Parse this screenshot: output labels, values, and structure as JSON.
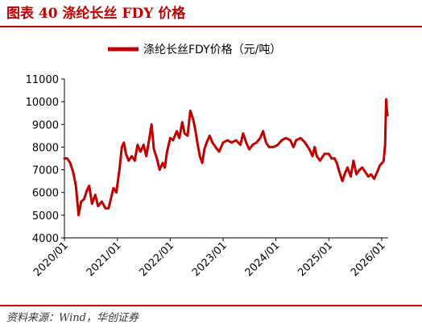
{
  "figure": {
    "title": "图表 40  涤纶长丝 FDY 价格",
    "source": "资料来源：Wind，华创证券"
  },
  "colors": {
    "accent": "#c00000",
    "series": "#c00000"
  },
  "chart_data": {
    "type": "line",
    "legend": "top-center",
    "grid": false,
    "series": [
      {
        "name": "涤纶长丝FDY价格（元/吨）",
        "points": [
          [
            "2020-01-01",
            7500
          ],
          [
            "2020-01-20",
            7500
          ],
          [
            "2020-02-10",
            7300
          ],
          [
            "2020-03-01",
            6900
          ],
          [
            "2020-03-20",
            6300
          ],
          [
            "2020-04-08",
            5000
          ],
          [
            "2020-04-25",
            5600
          ],
          [
            "2020-05-15",
            5700
          ],
          [
            "2020-06-05",
            6100
          ],
          [
            "2020-06-20",
            6300
          ],
          [
            "2020-07-10",
            5500
          ],
          [
            "2020-08-01",
            5900
          ],
          [
            "2020-08-20",
            5400
          ],
          [
            "2020-09-15",
            5600
          ],
          [
            "2020-10-10",
            5300
          ],
          [
            "2020-11-01",
            5300
          ],
          [
            "2020-11-20",
            5800
          ],
          [
            "2020-12-05",
            6200
          ],
          [
            "2020-12-25",
            6000
          ],
          [
            "2021-01-15",
            7000
          ],
          [
            "2021-02-01",
            8000
          ],
          [
            "2021-02-15",
            8200
          ],
          [
            "2021-03-01",
            7700
          ],
          [
            "2021-03-20",
            7400
          ],
          [
            "2021-04-10",
            7600
          ],
          [
            "2021-05-01",
            7400
          ],
          [
            "2021-05-20",
            8100
          ],
          [
            "2021-06-10",
            7800
          ],
          [
            "2021-07-01",
            8100
          ],
          [
            "2021-07-20",
            7600
          ],
          [
            "2021-08-10",
            8400
          ],
          [
            "2021-08-25",
            9000
          ],
          [
            "2021-09-10",
            7900
          ],
          [
            "2021-10-01",
            7500
          ],
          [
            "2021-10-20",
            7000
          ],
          [
            "2021-11-10",
            7300
          ],
          [
            "2021-11-25",
            7100
          ],
          [
            "2021-12-10",
            7800
          ],
          [
            "2022-01-01",
            8400
          ],
          [
            "2022-01-20",
            8300
          ],
          [
            "2022-02-15",
            8700
          ],
          [
            "2022-03-05",
            8400
          ],
          [
            "2022-03-25",
            9100
          ],
          [
            "2022-04-10",
            8600
          ],
          [
            "2022-05-01",
            8500
          ],
          [
            "2022-05-20",
            9600
          ],
          [
            "2022-06-10",
            9200
          ],
          [
            "2022-06-25",
            8700
          ],
          [
            "2022-07-10",
            8100
          ],
          [
            "2022-07-25",
            7600
          ],
          [
            "2022-08-10",
            7300
          ],
          [
            "2022-08-25",
            7900
          ],
          [
            "2022-09-10",
            8200
          ],
          [
            "2022-10-01",
            8500
          ],
          [
            "2022-10-20",
            8200
          ],
          [
            "2022-11-10",
            8000
          ],
          [
            "2022-12-05",
            7800
          ],
          [
            "2023-01-01",
            8200
          ],
          [
            "2023-02-01",
            8300
          ],
          [
            "2023-03-01",
            8200
          ],
          [
            "2023-04-01",
            8300
          ],
          [
            "2023-05-01",
            8100
          ],
          [
            "2023-05-20",
            8600
          ],
          [
            "2023-06-10",
            8200
          ],
          [
            "2023-07-01",
            7900
          ],
          [
            "2023-07-25",
            8100
          ],
          [
            "2023-08-20",
            8200
          ],
          [
            "2023-09-15",
            8400
          ],
          [
            "2023-10-05",
            8700
          ],
          [
            "2023-10-25",
            8200
          ],
          [
            "2023-11-15",
            8000
          ],
          [
            "2023-12-15",
            8000
          ],
          [
            "2024-01-15",
            8100
          ],
          [
            "2024-02-10",
            8300
          ],
          [
            "2024-03-10",
            8400
          ],
          [
            "2024-04-10",
            8300
          ],
          [
            "2024-05-01",
            8000
          ],
          [
            "2024-05-20",
            8300
          ],
          [
            "2024-06-20",
            8400
          ],
          [
            "2024-07-20",
            8200
          ],
          [
            "2024-08-20",
            7900
          ],
          [
            "2024-09-10",
            7600
          ],
          [
            "2024-09-25",
            8000
          ],
          [
            "2024-10-10",
            7600
          ],
          [
            "2024-11-01",
            7400
          ],
          [
            "2024-12-01",
            7700
          ],
          [
            "2025-01-01",
            7700
          ],
          [
            "2025-01-20",
            7500
          ],
          [
            "2025-02-10",
            7500
          ],
          [
            "2025-02-25",
            7300
          ],
          [
            "2025-03-15",
            6900
          ],
          [
            "2025-04-05",
            6500
          ],
          [
            "2025-04-20",
            6800
          ],
          [
            "2025-05-10",
            7100
          ],
          [
            "2025-06-01",
            6700
          ],
          [
            "2025-06-20",
            7400
          ],
          [
            "2025-07-10",
            6800
          ],
          [
            "2025-08-01",
            7000
          ],
          [
            "2025-08-20",
            7100
          ],
          [
            "2025-09-10",
            6900
          ],
          [
            "2025-10-01",
            6700
          ],
          [
            "2025-10-20",
            6800
          ],
          [
            "2025-11-10",
            6600
          ],
          [
            "2025-12-01",
            6900
          ],
          [
            "2025-12-20",
            7200
          ],
          [
            "2026-01-05",
            7300
          ],
          [
            "2026-01-15",
            7400
          ],
          [
            "2026-01-25",
            8100
          ],
          [
            "2026-02-01",
            10100
          ],
          [
            "2026-02-05",
            9700
          ],
          [
            "2026-02-10",
            9400
          ]
        ]
      }
    ],
    "y_ticks": [
      "11000",
      "10000",
      "9000",
      "8000",
      "7000",
      "6000",
      "5000",
      "4000"
    ],
    "ylim": [
      4000,
      11000
    ],
    "x_ticks": [
      "2020/01",
      "2021/01",
      "2022/01",
      "2023/01",
      "2024/01",
      "2025/01",
      "2026/01"
    ],
    "xlim": [
      "2020-01-01",
      "2026-02-15"
    ]
  }
}
